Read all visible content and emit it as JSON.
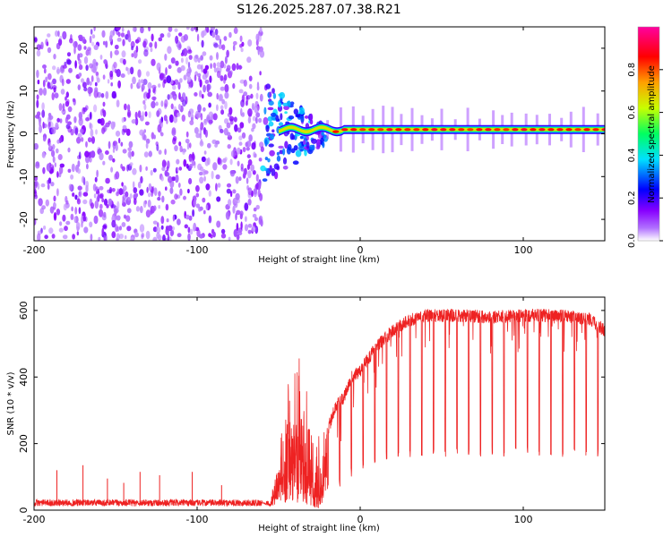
{
  "chart_data": [
    {
      "type": "heatmap",
      "title": "S126.2025.287.07.38.R21",
      "xlabel": "Height of straight line (km)",
      "ylabel": "Frequency (Hz)",
      "xlim": [
        -200,
        150
      ],
      "ylim": [
        -25,
        25
      ],
      "xticks": [
        -200,
        -100,
        0,
        100
      ],
      "yticks": [
        -20,
        -10,
        0,
        10,
        20
      ],
      "colorbar": {
        "label": "Normalized spectral amplitude",
        "range": [
          0.0,
          1.0
        ],
        "ticks": [
          0.0,
          0.2,
          0.4,
          0.6,
          0.8
        ],
        "colors": [
          "#ffffff",
          "#8800ff",
          "#0000ff",
          "#00e0ff",
          "#00ff60",
          "#c8ff00",
          "#ffa000",
          "#ff0000",
          "#ff00a0"
        ]
      },
      "regions": {
        "noise_x_range": [
          -200,
          -60
        ],
        "transition_x_range": [
          -60,
          -20
        ],
        "line_x_range": [
          -20,
          150
        ],
        "line_frequency_hz": 1
      }
    },
    {
      "type": "line",
      "xlabel": "Height of straight line (km)",
      "ylabel": "SNR (10 * v/v)",
      "xlim": [
        -200,
        150
      ],
      "ylim": [
        0,
        640
      ],
      "xticks": [
        -200,
        -100,
        0,
        100
      ],
      "yticks": [
        0,
        200,
        400,
        600
      ],
      "series": [
        {
          "name": "SNR",
          "color": "#ee2222",
          "x": [
            -200,
            -60,
            -55,
            -50,
            -45,
            -40,
            -35,
            -30,
            -25,
            -20,
            -15,
            -10,
            -5,
            0,
            10,
            20,
            30,
            40,
            50,
            60,
            80,
            100,
            120,
            140,
            150
          ],
          "y": [
            22,
            22,
            30,
            150,
            330,
            400,
            330,
            250,
            200,
            260,
            330,
            360,
            420,
            440,
            510,
            560,
            590,
            605,
            605,
            605,
            600,
            605,
            605,
            595,
            560
          ],
          "min_envelope_y": [
            22,
            22,
            10,
            20,
            20,
            15,
            10,
            10,
            5,
            60,
            60,
            80,
            100,
            120,
            140,
            150,
            155,
            160,
            160,
            160,
            160,
            160,
            160,
            160,
            160
          ],
          "spikes": [
            {
              "x": -186,
              "y": 120
            },
            {
              "x": -170,
              "y": 135
            },
            {
              "x": -155,
              "y": 95
            },
            {
              "x": -145,
              "y": 82
            },
            {
              "x": -135,
              "y": 115
            },
            {
              "x": -123,
              "y": 105
            },
            {
              "x": -103,
              "y": 115
            },
            {
              "x": -85,
              "y": 75
            }
          ]
        }
      ]
    }
  ]
}
